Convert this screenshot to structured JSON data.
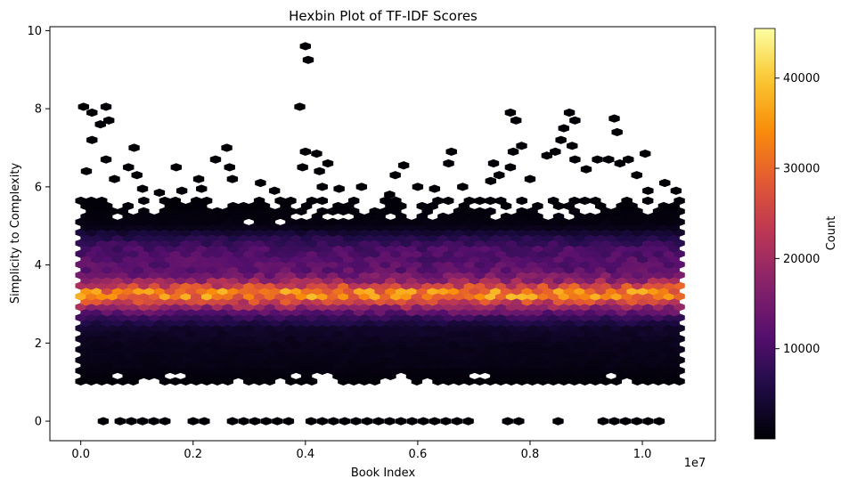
{
  "chart_data": {
    "type": "heatmap",
    "subtype": "hexbin",
    "title": "Hexbin Plot of TF-IDF Scores",
    "xlabel": "Book Index",
    "ylabel": "Simplicity to Complexity",
    "x_offset_text": "1e7",
    "xlim": [
      -0.055,
      1.13
    ],
    "ylim": [
      -0.5,
      10.1
    ],
    "x_ticks": [
      0.0,
      0.2,
      0.4,
      0.6,
      0.8,
      1.0
    ],
    "x_tick_labels": [
      "0.0",
      "0.2",
      "0.4",
      "0.6",
      "0.8",
      "1.0"
    ],
    "y_ticks": [
      0,
      2,
      4,
      6,
      8,
      10
    ],
    "y_tick_labels": [
      "0",
      "2",
      "4",
      "6",
      "8",
      "10"
    ],
    "x_extent": [
      0.0,
      1.07
    ],
    "colormap": "inferno",
    "colorbar": {
      "label": "Count",
      "range": [
        0,
        45500
      ],
      "ticks": [
        10000,
        20000,
        30000,
        40000
      ],
      "tick_labels": [
        "10000",
        "20000",
        "30000",
        "40000"
      ]
    },
    "density_profile": [
      {
        "y": 0.0,
        "count": 40
      },
      {
        "y": 1.0,
        "count": 200
      },
      {
        "y": 1.2,
        "count": 800
      },
      {
        "y": 1.5,
        "count": 1500
      },
      {
        "y": 2.0,
        "count": 2000
      },
      {
        "y": 2.4,
        "count": 3500
      },
      {
        "y": 2.7,
        "count": 9000
      },
      {
        "y": 2.9,
        "count": 17000
      },
      {
        "y": 3.1,
        "count": 27000
      },
      {
        "y": 3.25,
        "count": 36000
      },
      {
        "y": 3.4,
        "count": 29000
      },
      {
        "y": 3.6,
        "count": 19000
      },
      {
        "y": 3.8,
        "count": 13000
      },
      {
        "y": 4.1,
        "count": 11500
      },
      {
        "y": 4.4,
        "count": 10500
      },
      {
        "y": 4.7,
        "count": 6500
      },
      {
        "y": 5.0,
        "count": 1200
      },
      {
        "y": 5.5,
        "count": 400
      },
      {
        "y": 6.0,
        "count": 100
      },
      {
        "y": 7.0,
        "count": 20
      },
      {
        "y": 9.6,
        "count": 5
      }
    ]
  }
}
